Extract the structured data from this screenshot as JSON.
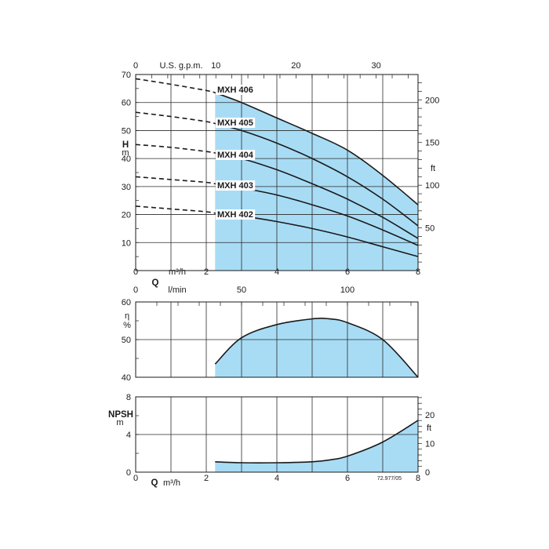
{
  "chart_data": [
    {
      "type": "line",
      "panel": "head",
      "ylabel": "H",
      "yunit": "m",
      "y2unit": "ft",
      "top_axis_label": "U.S. g.p.m.",
      "xlim": [
        0,
        8
      ],
      "ylim": [
        0,
        70
      ],
      "top_ticks": [
        "0",
        "10",
        "20",
        "30"
      ],
      "top_tick_values": [
        0,
        10,
        20,
        30
      ],
      "x_ticks": [
        "0",
        "2",
        "4",
        "6",
        "8"
      ],
      "x_tick_values": [
        0,
        2,
        4,
        6,
        8
      ],
      "x_unit_label": "m³/h",
      "y_ticks": [
        "10",
        "20",
        "30",
        "40",
        "50",
        "60",
        "70"
      ],
      "y_tick_values": [
        10,
        20,
        30,
        40,
        50,
        60,
        70
      ],
      "y2_ticks": [
        "50",
        "100",
        "150",
        "200"
      ],
      "y2_tick_values": [
        50,
        100,
        150,
        200
      ],
      "shade_from_x": 2.25,
      "dashed_until_x": 2.25,
      "fill_color": "#a8dcf5",
      "series": [
        {
          "name": "MXH 406",
          "x": [
            0,
            1,
            2,
            2.25,
            3,
            4,
            5,
            6,
            7,
            8
          ],
          "values": [
            68.5,
            66.5,
            64.3,
            63.5,
            60,
            54.5,
            49,
            43,
            34,
            23.5
          ]
        },
        {
          "name": "MXH 405",
          "x": [
            0,
            1,
            2,
            2.25,
            3,
            4,
            5,
            6,
            7,
            8
          ],
          "values": [
            56.5,
            55,
            53.2,
            52.5,
            50,
            45.5,
            40,
            33.5,
            25.5,
            16
          ]
        },
        {
          "name": "MXH 404",
          "x": [
            0,
            1,
            2,
            2.25,
            3,
            4,
            5,
            6,
            7,
            8
          ],
          "values": [
            45,
            44,
            42.5,
            42,
            40,
            36,
            31,
            25.5,
            19,
            11.5
          ]
        },
        {
          "name": "MXH 403",
          "x": [
            0,
            1,
            2,
            2.25,
            3,
            4,
            5,
            6,
            7,
            8
          ],
          "values": [
            33.5,
            32.5,
            31.5,
            31,
            29.5,
            27,
            23.5,
            19.5,
            14.5,
            9
          ]
        },
        {
          "name": "MXH 402",
          "x": [
            0,
            1,
            2,
            2.25,
            3,
            4,
            5,
            6,
            7,
            8
          ],
          "values": [
            23,
            22,
            21,
            20.5,
            19.5,
            17.5,
            15,
            12,
            8.5,
            5
          ]
        }
      ]
    },
    {
      "type": "area",
      "panel": "efficiency",
      "ylabel": "η",
      "yunit": "%",
      "top_axis_label": "Q",
      "top_unit_label": "l/min",
      "xlim": [
        0,
        8
      ],
      "ylim": [
        40,
        60
      ],
      "top_ticks": [
        "0",
        "50",
        "100"
      ],
      "top_tick_values": [
        0,
        50,
        100
      ],
      "y_ticks": [
        "40",
        "50",
        "60"
      ],
      "y_tick_values": [
        40,
        50,
        60
      ],
      "fill_color": "#a8dcf5",
      "series": [
        {
          "name": "",
          "x": [
            2.25,
            3,
            4,
            5,
            5.5,
            6,
            7,
            8
          ],
          "values": [
            43.5,
            50.5,
            54,
            55.5,
            55.5,
            54.5,
            50,
            40
          ]
        }
      ]
    },
    {
      "type": "area",
      "panel": "npsh",
      "ylabel": "NPSH",
      "yunit": "m",
      "y2unit": "ft",
      "xlabel": "Q",
      "x_unit_label": "m³/h",
      "xlim": [
        0,
        8
      ],
      "ylim": [
        0,
        8
      ],
      "x_ticks": [
        "0",
        "2",
        "4",
        "6",
        "8"
      ],
      "x_tick_values": [
        0,
        2,
        4,
        6,
        8
      ],
      "y_ticks": [
        "0",
        "4",
        "8"
      ],
      "y_tick_values": [
        0,
        4,
        8
      ],
      "y2_ticks": [
        "0",
        "10",
        "20"
      ],
      "y2_tick_values": [
        0,
        10,
        20
      ],
      "fill_color": "#a8dcf5",
      "series": [
        {
          "name": "",
          "x": [
            2.25,
            3,
            4,
            5,
            5.5,
            6,
            7,
            8
          ],
          "values": [
            1.1,
            1.0,
            1.0,
            1.1,
            1.3,
            1.7,
            3.2,
            5.5
          ]
        }
      ]
    }
  ],
  "ref_code": "72.977/05"
}
